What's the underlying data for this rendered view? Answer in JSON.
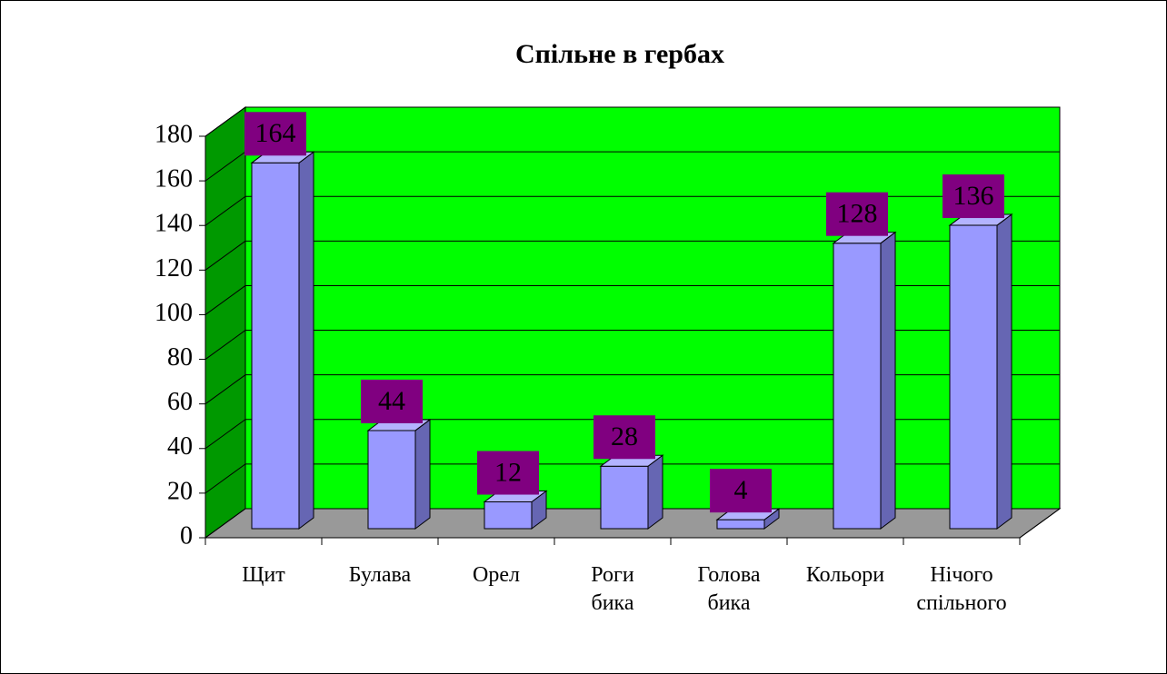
{
  "chart_data": {
    "type": "bar3d",
    "title": "Спільне в гербах",
    "categories": [
      "Щит",
      "Булава",
      "Орел",
      "Роги\nбика",
      "Голова\nбика",
      "Кольори",
      "Нічого\nспільного"
    ],
    "values": [
      164,
      44,
      12,
      28,
      4,
      128,
      136
    ],
    "color": "#9999ff",
    "ylim": [
      0,
      180
    ],
    "yticks": [
      0,
      20,
      40,
      60,
      80,
      100,
      120,
      140,
      160,
      180
    ],
    "grid": true
  }
}
